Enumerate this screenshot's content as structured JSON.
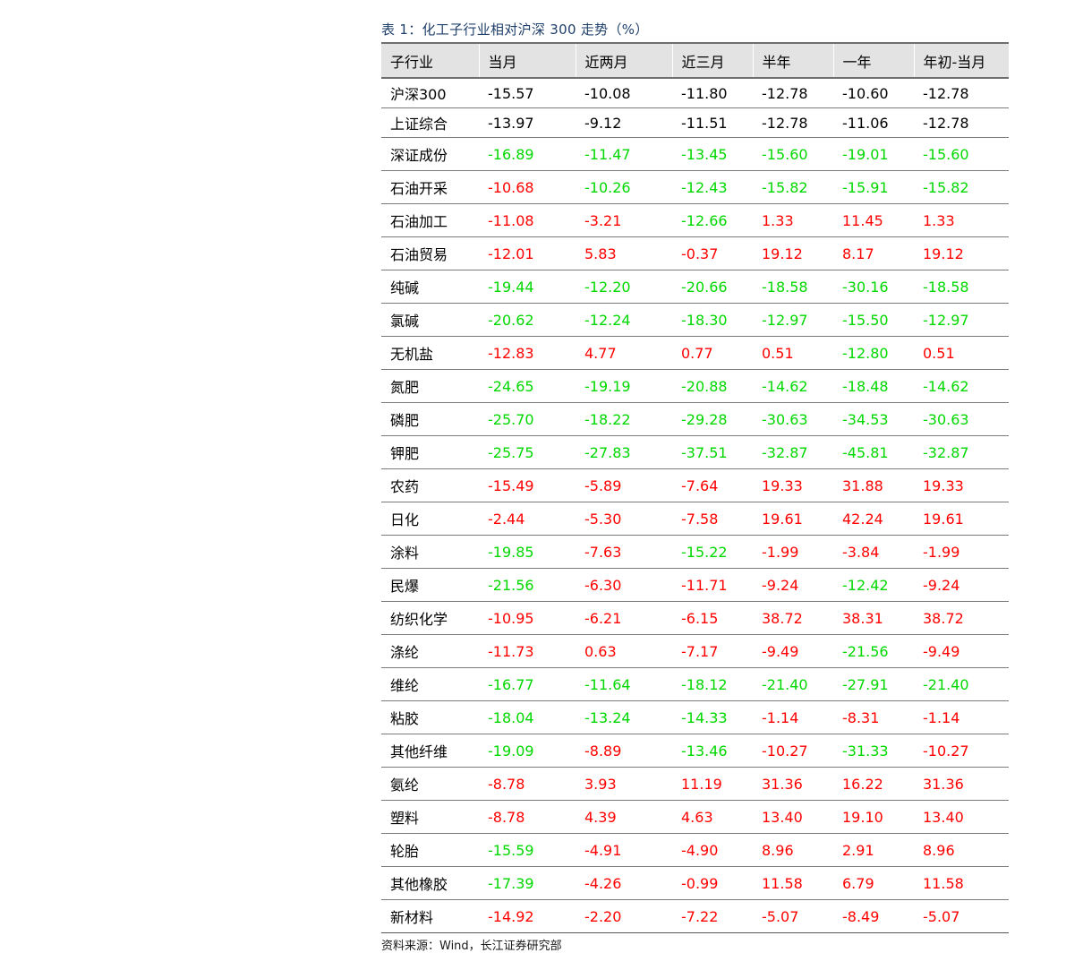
{
  "caption": "表 1：化工子行业相对沪深 300 走势（%）",
  "source": "资料来源：Wind，长江证券研究部",
  "colors": {
    "up": "#ff0000",
    "down": "#00d800",
    "neutral": "#000000",
    "header_bg": "#e3e3e3"
  },
  "table": {
    "headers": [
      "子行业",
      "当月",
      "近两月",
      "近三月",
      "半年",
      "一年",
      "年初-当月"
    ],
    "rows": [
      [
        "沪深300",
        "-15.57",
        "-10.08",
        "-11.80",
        "-12.78",
        "-10.60",
        "-12.78"
      ],
      [
        "上证综合",
        "-13.97",
        "-9.12",
        "-11.51",
        "-12.78",
        "-11.06",
        "-12.78"
      ],
      [
        "深证成份",
        "-16.89",
        "-11.47",
        "-13.45",
        "-15.60",
        "-19.01",
        "-15.60"
      ],
      [
        "石油开采",
        "-10.68",
        "-10.26",
        "-12.43",
        "-15.82",
        "-15.91",
        "-15.82"
      ],
      [
        "石油加工",
        "-11.08",
        "-3.21",
        "-12.66",
        "1.33",
        "11.45",
        "1.33"
      ],
      [
        "石油贸易",
        "-12.01",
        "5.83",
        "-0.37",
        "19.12",
        "8.17",
        "19.12"
      ],
      [
        "纯碱",
        "-19.44",
        "-12.20",
        "-20.66",
        "-18.58",
        "-30.16",
        "-18.58"
      ],
      [
        "氯碱",
        "-20.62",
        "-12.24",
        "-18.30",
        "-12.97",
        "-15.50",
        "-12.97"
      ],
      [
        "无机盐",
        "-12.83",
        "4.77",
        "0.77",
        "0.51",
        "-12.80",
        "0.51"
      ],
      [
        "氮肥",
        "-24.65",
        "-19.19",
        "-20.88",
        "-14.62",
        "-18.48",
        "-14.62"
      ],
      [
        "磷肥",
        "-25.70",
        "-18.22",
        "-29.28",
        "-30.63",
        "-34.53",
        "-30.63"
      ],
      [
        "钾肥",
        "-25.75",
        "-27.83",
        "-37.51",
        "-32.87",
        "-45.81",
        "-32.87"
      ],
      [
        "农药",
        "-15.49",
        "-5.89",
        "-7.64",
        "19.33",
        "31.88",
        "19.33"
      ],
      [
        "日化",
        "-2.44",
        "-5.30",
        "-7.58",
        "19.61",
        "42.24",
        "19.61"
      ],
      [
        "涂料",
        "-19.85",
        "-7.63",
        "-15.22",
        "-1.99",
        "-3.84",
        "-1.99"
      ],
      [
        "民爆",
        "-21.56",
        "-6.30",
        "-11.71",
        "-9.24",
        "-12.42",
        "-9.24"
      ],
      [
        "纺织化学",
        "-10.95",
        "-6.21",
        "-6.15",
        "38.72",
        "38.31",
        "38.72"
      ],
      [
        "涤纶",
        "-11.73",
        "0.63",
        "-7.17",
        "-9.49",
        "-21.56",
        "-9.49"
      ],
      [
        "维纶",
        "-16.77",
        "-11.64",
        "-18.12",
        "-21.40",
        "-27.91",
        "-21.40"
      ],
      [
        "粘胶",
        "-18.04",
        "-13.24",
        "-14.33",
        "-1.14",
        "-8.31",
        "-1.14"
      ],
      [
        "其他纤维",
        "-19.09",
        "-8.89",
        "-13.46",
        "-10.27",
        "-31.33",
        "-10.27"
      ],
      [
        "氨纶",
        "-8.78",
        "3.93",
        "11.19",
        "31.36",
        "16.22",
        "31.36"
      ],
      [
        "塑料",
        "-8.78",
        "4.39",
        "4.63",
        "13.40",
        "19.10",
        "13.40"
      ],
      [
        "轮胎",
        "-15.59",
        "-4.91",
        "-4.90",
        "8.96",
        "2.91",
        "8.96"
      ],
      [
        "其他橡胶",
        "-17.39",
        "-4.26",
        "-0.99",
        "11.58",
        "6.79",
        "11.58"
      ],
      [
        "新材料",
        "-14.92",
        "-2.20",
        "-7.22",
        "-5.07",
        "-8.49",
        "-5.07"
      ]
    ],
    "cell_colors": [
      [
        "k",
        "k",
        "k",
        "k",
        "k",
        "k",
        "k"
      ],
      [
        "k",
        "k",
        "k",
        "k",
        "k",
        "k",
        "k"
      ],
      [
        "k",
        "g",
        "g",
        "g",
        "g",
        "g",
        "g"
      ],
      [
        "k",
        "r",
        "g",
        "g",
        "g",
        "g",
        "g"
      ],
      [
        "k",
        "r",
        "r",
        "g",
        "r",
        "r",
        "r"
      ],
      [
        "k",
        "r",
        "r",
        "r",
        "r",
        "r",
        "r"
      ],
      [
        "k",
        "g",
        "g",
        "g",
        "g",
        "g",
        "g"
      ],
      [
        "k",
        "g",
        "g",
        "g",
        "g",
        "g",
        "g"
      ],
      [
        "k",
        "r",
        "r",
        "r",
        "r",
        "g",
        "r"
      ],
      [
        "k",
        "g",
        "g",
        "g",
        "g",
        "g",
        "g"
      ],
      [
        "k",
        "g",
        "g",
        "g",
        "g",
        "g",
        "g"
      ],
      [
        "k",
        "g",
        "g",
        "g",
        "g",
        "g",
        "g"
      ],
      [
        "k",
        "r",
        "r",
        "r",
        "r",
        "r",
        "r"
      ],
      [
        "k",
        "r",
        "r",
        "r",
        "r",
        "r",
        "r"
      ],
      [
        "k",
        "g",
        "r",
        "g",
        "r",
        "r",
        "r"
      ],
      [
        "k",
        "g",
        "r",
        "r",
        "r",
        "g",
        "r"
      ],
      [
        "k",
        "r",
        "r",
        "r",
        "r",
        "r",
        "r"
      ],
      [
        "k",
        "r",
        "r",
        "r",
        "r",
        "g",
        "r"
      ],
      [
        "k",
        "g",
        "g",
        "g",
        "g",
        "g",
        "g"
      ],
      [
        "k",
        "g",
        "g",
        "g",
        "r",
        "r",
        "r"
      ],
      [
        "k",
        "g",
        "r",
        "g",
        "r",
        "g",
        "r"
      ],
      [
        "k",
        "r",
        "r",
        "r",
        "r",
        "r",
        "r"
      ],
      [
        "k",
        "r",
        "r",
        "r",
        "r",
        "r",
        "r"
      ],
      [
        "k",
        "g",
        "r",
        "r",
        "r",
        "r",
        "r"
      ],
      [
        "k",
        "g",
        "r",
        "r",
        "r",
        "r",
        "r"
      ],
      [
        "k",
        "r",
        "r",
        "r",
        "r",
        "r",
        "r"
      ]
    ]
  }
}
